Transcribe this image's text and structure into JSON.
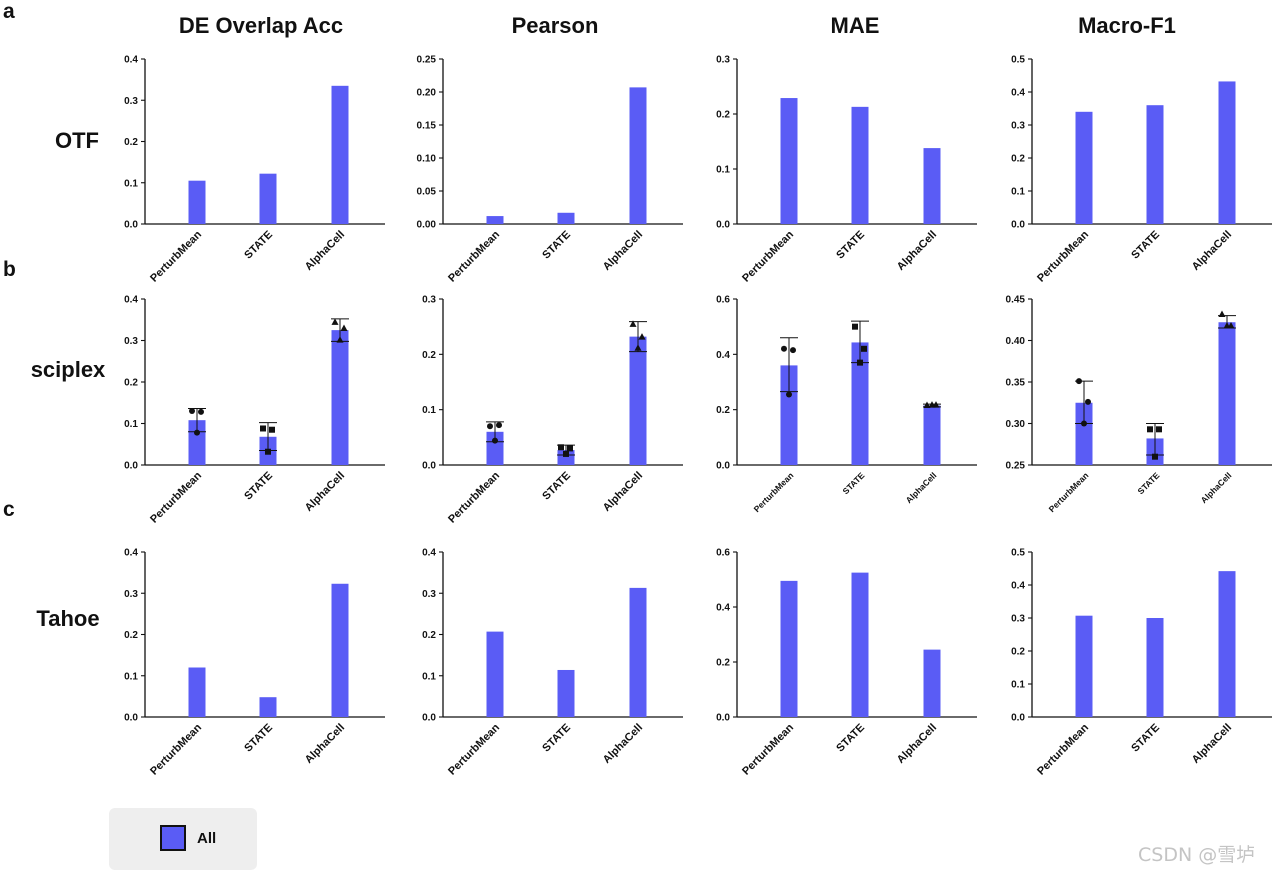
{
  "panel_letters": [
    "a",
    "b",
    "c"
  ],
  "metrics": [
    "DE Overlap Acc",
    "Pearson",
    "MAE",
    "Macro-F1"
  ],
  "datasets": [
    "OTF",
    "sciplex",
    "Tahoe"
  ],
  "colors": {
    "bar": "#5a5cf5",
    "axis": "#111111",
    "point": "#111111"
  },
  "legend": {
    "label": "All",
    "color": "#5a5cf5"
  },
  "watermark": "CSDN @雪垆",
  "chart_data": [
    {
      "type": "bar",
      "dataset": "OTF",
      "metric": "DE Overlap Acc",
      "categories": [
        "PerturbMean",
        "STATE",
        "AlphaCell"
      ],
      "values": [
        0.105,
        0.122,
        0.335
      ],
      "ylim": [
        0,
        0.4
      ],
      "yticks": [
        "0.0",
        "0.1",
        "0.2",
        "0.3",
        "0.4"
      ]
    },
    {
      "type": "bar",
      "dataset": "OTF",
      "metric": "Pearson",
      "categories": [
        "PerturbMean",
        "STATE",
        "AlphaCell"
      ],
      "values": [
        0.012,
        0.017,
        0.207
      ],
      "ylim": [
        0,
        0.25
      ],
      "yticks": [
        "0.00",
        "0.05",
        "0.10",
        "0.15",
        "0.20",
        "0.25"
      ]
    },
    {
      "type": "bar",
      "dataset": "OTF",
      "metric": "MAE",
      "categories": [
        "PerturbMean",
        "STATE",
        "AlphaCell"
      ],
      "values": [
        0.229,
        0.213,
        0.138
      ],
      "ylim": [
        0,
        0.3
      ],
      "yticks": [
        "0.0",
        "0.1",
        "0.2",
        "0.3"
      ]
    },
    {
      "type": "bar",
      "dataset": "OTF",
      "metric": "Macro-F1",
      "categories": [
        "PerturbMean",
        "STATE",
        "AlphaCell"
      ],
      "values": [
        0.34,
        0.36,
        0.432
      ],
      "ylim": [
        0,
        0.5
      ],
      "yticks": [
        "0.0",
        "0.1",
        "0.2",
        "0.3",
        "0.4",
        "0.5"
      ]
    },
    {
      "type": "bar",
      "dataset": "sciplex",
      "metric": "DE Overlap Acc",
      "categories": [
        "PerturbMean",
        "STATE",
        "AlphaCell"
      ],
      "values": [
        0.108,
        0.068,
        0.325
      ],
      "error_low": [
        0.08,
        0.035,
        0.298
      ],
      "error_high": [
        0.136,
        0.102,
        0.352
      ],
      "points": [
        [
          0.13,
          0.128,
          0.078
        ],
        [
          0.088,
          0.085,
          0.032
        ],
        [
          0.345,
          0.33,
          0.302
        ]
      ],
      "markers": [
        "circle",
        "square",
        "triangle"
      ],
      "ylim": [
        0,
        0.4
      ],
      "yticks": [
        "0.0",
        "0.1",
        "0.2",
        "0.3",
        "0.4"
      ]
    },
    {
      "type": "bar",
      "dataset": "sciplex",
      "metric": "Pearson",
      "categories": [
        "PerturbMean",
        "STATE",
        "AlphaCell"
      ],
      "values": [
        0.06,
        0.027,
        0.232
      ],
      "error_low": [
        0.042,
        0.018,
        0.205
      ],
      "error_high": [
        0.078,
        0.036,
        0.259
      ],
      "points": [
        [
          0.07,
          0.072,
          0.044
        ],
        [
          0.032,
          0.03,
          0.02
        ],
        [
          0.255,
          0.232,
          0.212
        ]
      ],
      "markers": [
        "circle",
        "square",
        "triangle"
      ],
      "ylim": [
        0,
        0.3
      ],
      "yticks": [
        "0.0",
        "0.1",
        "0.2",
        "0.3"
      ]
    },
    {
      "type": "bar",
      "dataset": "sciplex",
      "metric": "MAE",
      "categories": [
        "PerturbMean",
        "STATE",
        "AlphaCell"
      ],
      "values": [
        0.36,
        0.443,
        0.215
      ],
      "error_low": [
        0.265,
        0.37,
        0.21
      ],
      "error_high": [
        0.46,
        0.52,
        0.22
      ],
      "points": [
        [
          0.42,
          0.415,
          0.255
        ],
        [
          0.5,
          0.42,
          0.37
        ],
        [
          0.217,
          0.218,
          0.218
        ]
      ],
      "markers": [
        "circle",
        "square",
        "triangle"
      ],
      "ylim": [
        0,
        0.6
      ],
      "yticks": [
        "0.0",
        "0.2",
        "0.4",
        "0.6"
      ]
    },
    {
      "type": "bar",
      "dataset": "sciplex",
      "metric": "Macro-F1",
      "categories": [
        "PerturbMean",
        "STATE",
        "AlphaCell"
      ],
      "values": [
        0.325,
        0.282,
        0.422
      ],
      "error_low": [
        0.3,
        0.262,
        0.415
      ],
      "error_high": [
        0.351,
        0.3,
        0.43
      ],
      "points": [
        [
          0.351,
          0.326,
          0.3
        ],
        [
          0.293,
          0.293,
          0.26
        ],
        [
          0.432,
          0.418,
          0.418
        ]
      ],
      "markers": [
        "circle",
        "square",
        "triangle"
      ],
      "ylim": [
        0.25,
        0.45
      ],
      "yticks": [
        "0.25",
        "0.30",
        "0.35",
        "0.40",
        "0.45"
      ]
    },
    {
      "type": "bar",
      "dataset": "Tahoe",
      "metric": "DE Overlap Acc",
      "categories": [
        "PerturbMean",
        "STATE",
        "AlphaCell"
      ],
      "values": [
        0.12,
        0.048,
        0.323
      ],
      "ylim": [
        0,
        0.4
      ],
      "yticks": [
        "0.0",
        "0.1",
        "0.2",
        "0.3",
        "0.4"
      ]
    },
    {
      "type": "bar",
      "dataset": "Tahoe",
      "metric": "Pearson",
      "categories": [
        "PerturbMean",
        "STATE",
        "AlphaCell"
      ],
      "values": [
        0.207,
        0.114,
        0.313
      ],
      "ylim": [
        0,
        0.4
      ],
      "yticks": [
        "0.0",
        "0.1",
        "0.2",
        "0.3",
        "0.4"
      ]
    },
    {
      "type": "bar",
      "dataset": "Tahoe",
      "metric": "MAE",
      "categories": [
        "PerturbMean",
        "STATE",
        "AlphaCell"
      ],
      "values": [
        0.495,
        0.525,
        0.245
      ],
      "ylim": [
        0,
        0.6
      ],
      "yticks": [
        "0.0",
        "0.2",
        "0.4",
        "0.6"
      ]
    },
    {
      "type": "bar",
      "dataset": "Tahoe",
      "metric": "Macro-F1",
      "categories": [
        "PerturbMean",
        "STATE",
        "AlphaCell"
      ],
      "values": [
        0.307,
        0.3,
        0.442
      ],
      "ylim": [
        0,
        0.5
      ],
      "yticks": [
        "0.0",
        "0.1",
        "0.2",
        "0.3",
        "0.4",
        "0.5"
      ]
    }
  ]
}
